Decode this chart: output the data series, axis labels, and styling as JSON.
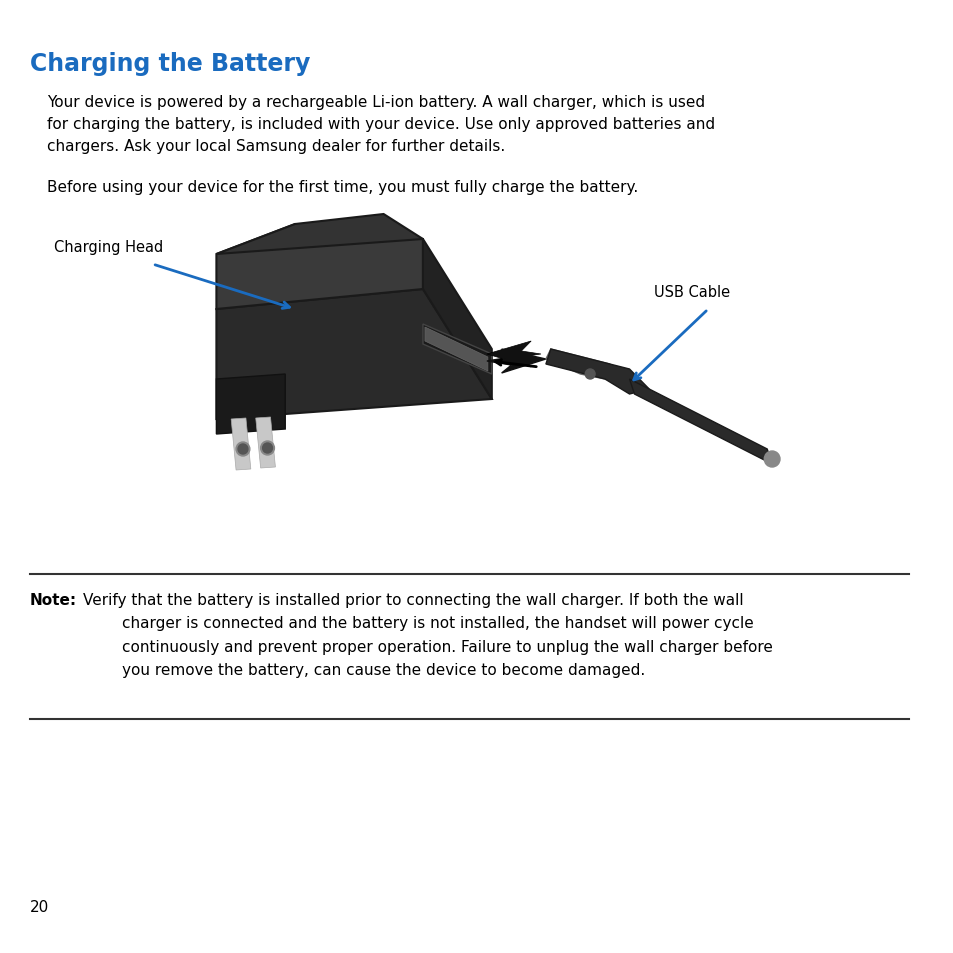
{
  "title": "Charging the Battery",
  "title_color": "#1a6bbf",
  "title_fontsize": 17,
  "body_text_1": "Your device is powered by a rechargeable Li-ion battery. A wall charger, which is used\nfor charging the battery, is included with your device. Use only approved batteries and\nchargers. Ask your local Samsung dealer for further details.",
  "body_text_2": "Before using your device for the first time, you must fully charge the battery.",
  "label_charging_head": "Charging Head",
  "label_usb_cable": "USB Cable",
  "note_bold": "Note:",
  "note_text": " Verify that the battery is installed prior to connecting the wall charger. If both the wall\n        charger is connected and the battery is not installed, the handset will power cycle\n        continuously and prevent proper operation. Failure to unplug the wall charger before\n        you remove the battery, can cause the device to become damaged.",
  "page_number": "20",
  "bg_color": "#ffffff",
  "text_color": "#000000",
  "blue_color": "#1a6bbf",
  "body_fontsize": 11,
  "label_fontsize": 10.5,
  "note_fontsize": 11
}
